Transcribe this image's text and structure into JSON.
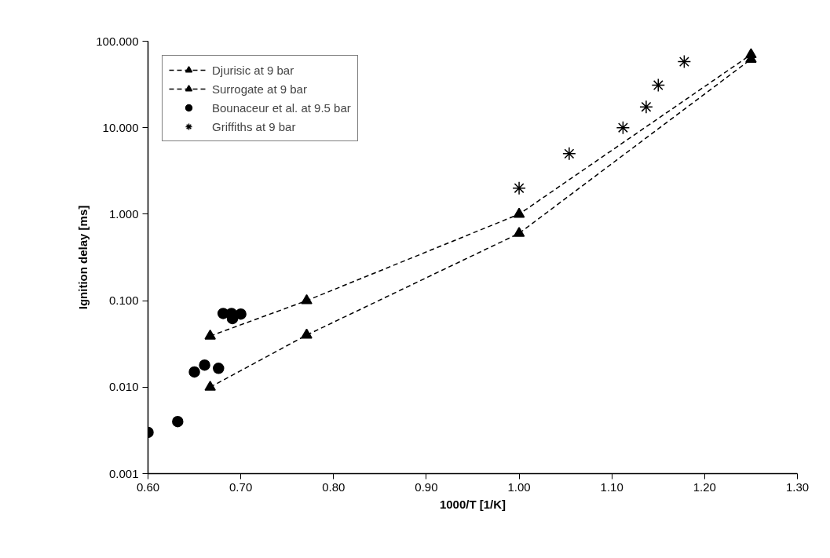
{
  "chart_data": {
    "type": "line",
    "xlabel": "1000/T [1/K]",
    "ylabel": "Ignition delay [ms]",
    "log": "y",
    "grid": false,
    "legend": "top left",
    "line_style": "dashed",
    "xlim": [
      0.6,
      1.3
    ],
    "xticks": [
      {
        "value": 0.6,
        "label": "0.60"
      },
      {
        "value": 0.7,
        "label": "0.70"
      },
      {
        "value": 0.8,
        "label": "0.80"
      },
      {
        "value": 0.9,
        "label": "0.90"
      },
      {
        "value": 1.0,
        "label": "1.00"
      },
      {
        "value": 1.1,
        "label": "1.10"
      },
      {
        "value": 1.2,
        "label": "1.20"
      },
      {
        "value": 1.3,
        "label": "1.30"
      }
    ],
    "ylim": [
      0.001,
      100
    ],
    "yticks": [
      {
        "value": 0.001,
        "label": "0.001"
      },
      {
        "value": 0.01,
        "label": "0.010"
      },
      {
        "value": 0.1,
        "label": "0.100"
      },
      {
        "value": 1,
        "label": "1.000"
      },
      {
        "value": 10,
        "label": "10.000"
      },
      {
        "value": 100,
        "label": "100.000"
      }
    ],
    "series": [
      {
        "name": "Djurisic at 9 bar",
        "color": "#000000",
        "marker": "triangle",
        "x": [
          0.667,
          0.771,
          1.0,
          1.25
        ],
        "values": [
          0.01,
          0.04,
          0.6,
          62
        ]
      },
      {
        "name": "Surrogate at 9 bar",
        "color": "#000000",
        "marker": "triangle",
        "x": [
          0.667,
          0.771,
          1.0,
          1.25
        ],
        "values": [
          0.039,
          0.1,
          1.0,
          70
        ]
      },
      {
        "name": "Bounaceur et al. at 9.5 bar",
        "type": "scatter",
        "color": "#000000",
        "marker": "circle",
        "x": [
          0.6,
          0.632,
          0.65,
          0.661,
          0.676,
          0.681,
          0.69,
          0.691,
          0.7
        ],
        "values": [
          0.003,
          0.004,
          0.015,
          0.018,
          0.0165,
          0.071,
          0.071,
          0.062,
          0.07
        ]
      },
      {
        "name": "Griffiths at 9 bar",
        "type": "scatter",
        "color": "#000000",
        "marker": "cross",
        "x": [
          1.0,
          1.054,
          1.112,
          1.137,
          1.15,
          1.178
        ],
        "values": [
          2.0,
          5.0,
          10.0,
          17.4,
          31,
          58
        ]
      }
    ]
  }
}
